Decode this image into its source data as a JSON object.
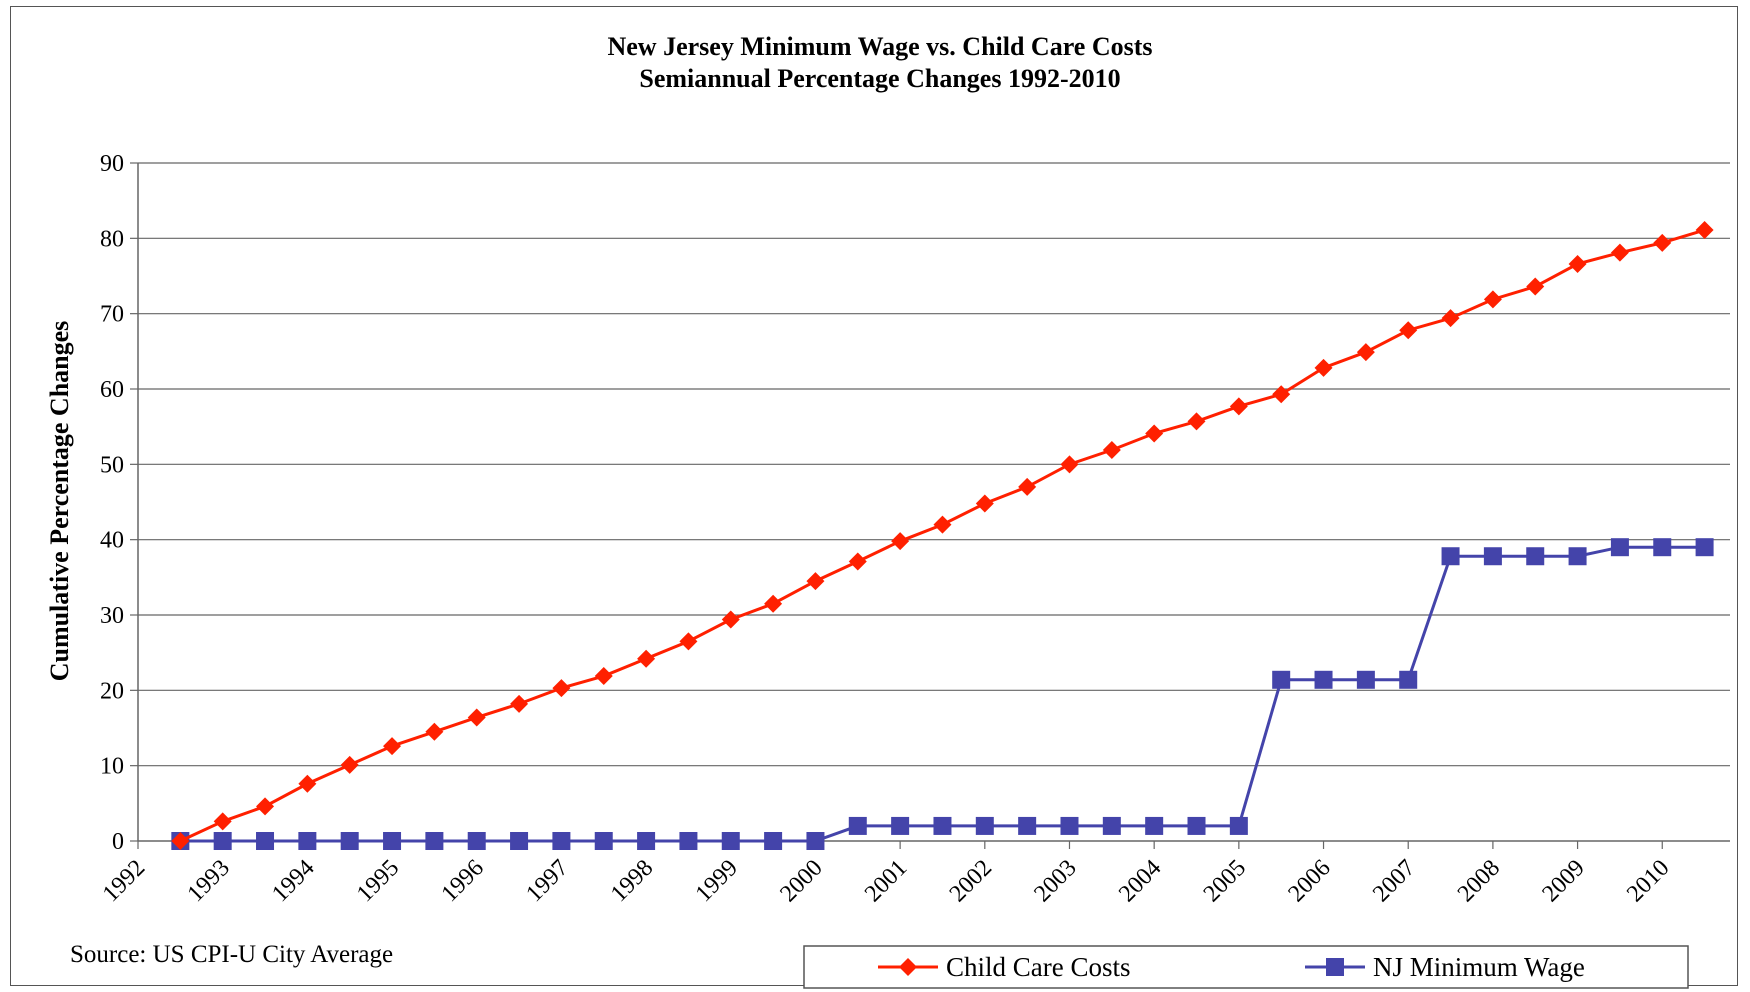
{
  "chart_data": {
    "type": "line",
    "title": "New Jersey Minimum Wage vs. Child Care Costs",
    "subtitle": "Semiannual Percentage Changes 1992-2010",
    "ylabel": "Cumulative Percentage Changes",
    "xlabel": "",
    "ylim": [
      0,
      90
    ],
    "yticks": [
      0,
      10,
      20,
      30,
      40,
      50,
      60,
      70,
      80,
      90
    ],
    "grid": "horizontal",
    "legend_position": "bottom",
    "source": "Source: US CPI-U City Average",
    "year_labels": [
      "1992",
      "1993",
      "1994",
      "1995",
      "1996",
      "1997",
      "1998",
      "1999",
      "2000",
      "2001",
      "2002",
      "2003",
      "2004",
      "2005",
      "2006",
      "2007",
      "2008",
      "2009",
      "2010"
    ],
    "x": [
      "1992.5",
      "1993.0",
      "1993.5",
      "1994.0",
      "1994.5",
      "1995.0",
      "1995.5",
      "1996.0",
      "1996.5",
      "1997.0",
      "1997.5",
      "1998.0",
      "1998.5",
      "1999.0",
      "1999.5",
      "2000.0",
      "2000.5",
      "2001.0",
      "2001.5",
      "2002.0",
      "2002.5",
      "2003.0",
      "2003.5",
      "2004.0",
      "2004.5",
      "2005.0",
      "2005.5",
      "2006.0",
      "2006.5",
      "2007.0",
      "2007.5",
      "2008.0",
      "2008.5",
      "2009.0",
      "2009.5",
      "2010.0",
      "2010.5"
    ],
    "series": [
      {
        "name": "Child Care Costs",
        "color": "#ff2000",
        "marker": "diamond",
        "values": [
          0,
          2.6,
          4.6,
          7.6,
          10.1,
          12.6,
          14.5,
          16.4,
          18.2,
          20.3,
          21.9,
          24.2,
          26.5,
          29.4,
          31.5,
          34.5,
          37.1,
          39.8,
          42.0,
          44.8,
          47.0,
          50.0,
          51.9,
          54.1,
          55.7,
          57.7,
          59.3,
          62.8,
          64.9,
          67.8,
          69.4,
          71.9,
          73.6,
          76.6,
          78.1,
          79.4,
          81.1
        ]
      },
      {
        "name": "NJ Minimum Wage",
        "color": "#4444aa",
        "marker": "square",
        "values": [
          0,
          0,
          0,
          0,
          0,
          0,
          0,
          0,
          0,
          0,
          0,
          0,
          0,
          0,
          0,
          0,
          2.0,
          2.0,
          2.0,
          2.0,
          2.0,
          2.0,
          2.0,
          2.0,
          2.0,
          2.0,
          21.4,
          21.4,
          21.4,
          21.4,
          37.8,
          37.8,
          37.8,
          37.8,
          39.0,
          39.0,
          39.0
        ]
      }
    ]
  }
}
